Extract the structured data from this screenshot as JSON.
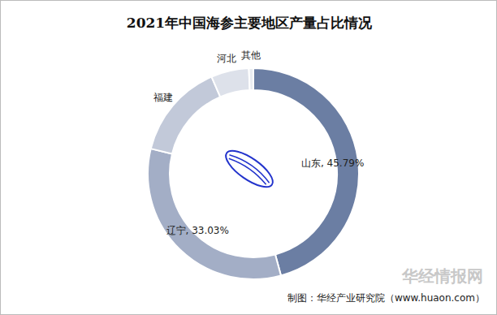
{
  "chart_data": {
    "type": "pie",
    "title": "2021年中国海参主要地区产量占比情况",
    "categories": [
      "山东",
      "辽宁",
      "福建",
      "河北",
      "其他"
    ],
    "values": [
      45.79,
      33.03,
      14.7,
      5.8,
      0.68
    ],
    "value_labels": [
      "45.79%",
      "33.03%",
      null,
      null,
      null
    ],
    "colors": [
      "#6b7ea3",
      "#a3aec6",
      "#c2c9d9",
      "#dde1ea",
      "#e9ecf1"
    ],
    "data_labels": true,
    "annotations": [
      "制图：华经产业研究院（www.huaon.com）",
      "华经情报网"
    ]
  }
}
